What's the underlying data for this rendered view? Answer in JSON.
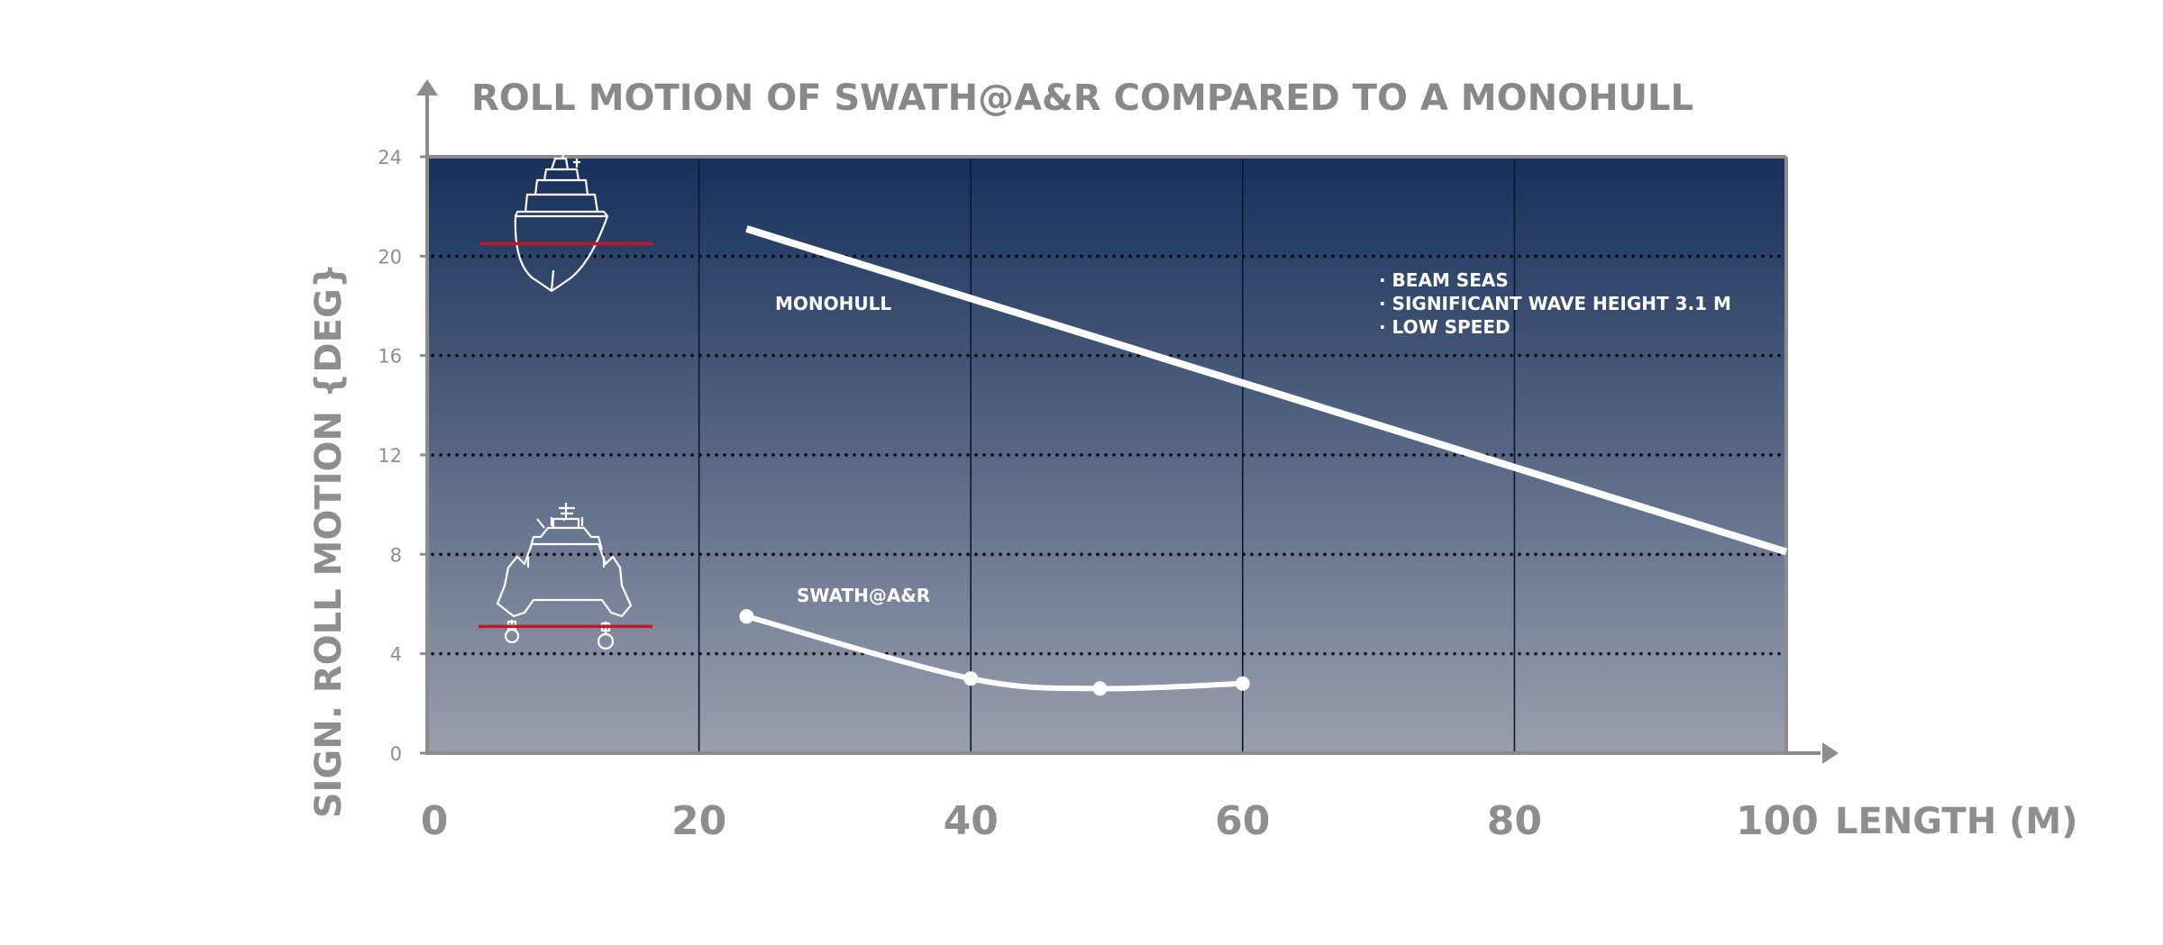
{
  "chart_data": {
    "type": "line",
    "title": "ROLL MOTION OF SWATH@A&R COMPARED TO A MONOHULL",
    "xlabel": "LENGTH (M)",
    "ylabel": "SIGN. ROLL MOTION {DEG}",
    "xlim": [
      0,
      100
    ],
    "ylim": [
      0,
      24
    ],
    "x_ticks": [
      "0",
      "20",
      "40",
      "60",
      "80",
      "100"
    ],
    "y_ticks": [
      "0",
      "4",
      "8",
      "12",
      "16",
      "20",
      "24"
    ],
    "grid": "horizontal dotted at 4, 8, 12, 16, 20; vertical solid at 20, 40, 60, 80",
    "series": [
      {
        "name": "MONOHULL",
        "x": [
          23.5,
          100
        ],
        "y": [
          21.1,
          8.1
        ]
      },
      {
        "name": "SWATH@A&R",
        "x": [
          23.5,
          40,
          49.5,
          60
        ],
        "y": [
          5.5,
          3.0,
          2.6,
          2.8
        ]
      }
    ],
    "annotations": [
      "· BEAM SEAS",
      "· SIGNIFICANT WAVE HEIGHT 3.1 M",
      "· LOW SPEED"
    ],
    "marker_lines": [
      20.5,
      5.1
    ],
    "colors": {
      "background_top": "#16305a",
      "background_bottom": "#9a9fae",
      "axis": "#8c8c8c",
      "series": "#ffffff",
      "marker_line": "#c4162a"
    }
  }
}
